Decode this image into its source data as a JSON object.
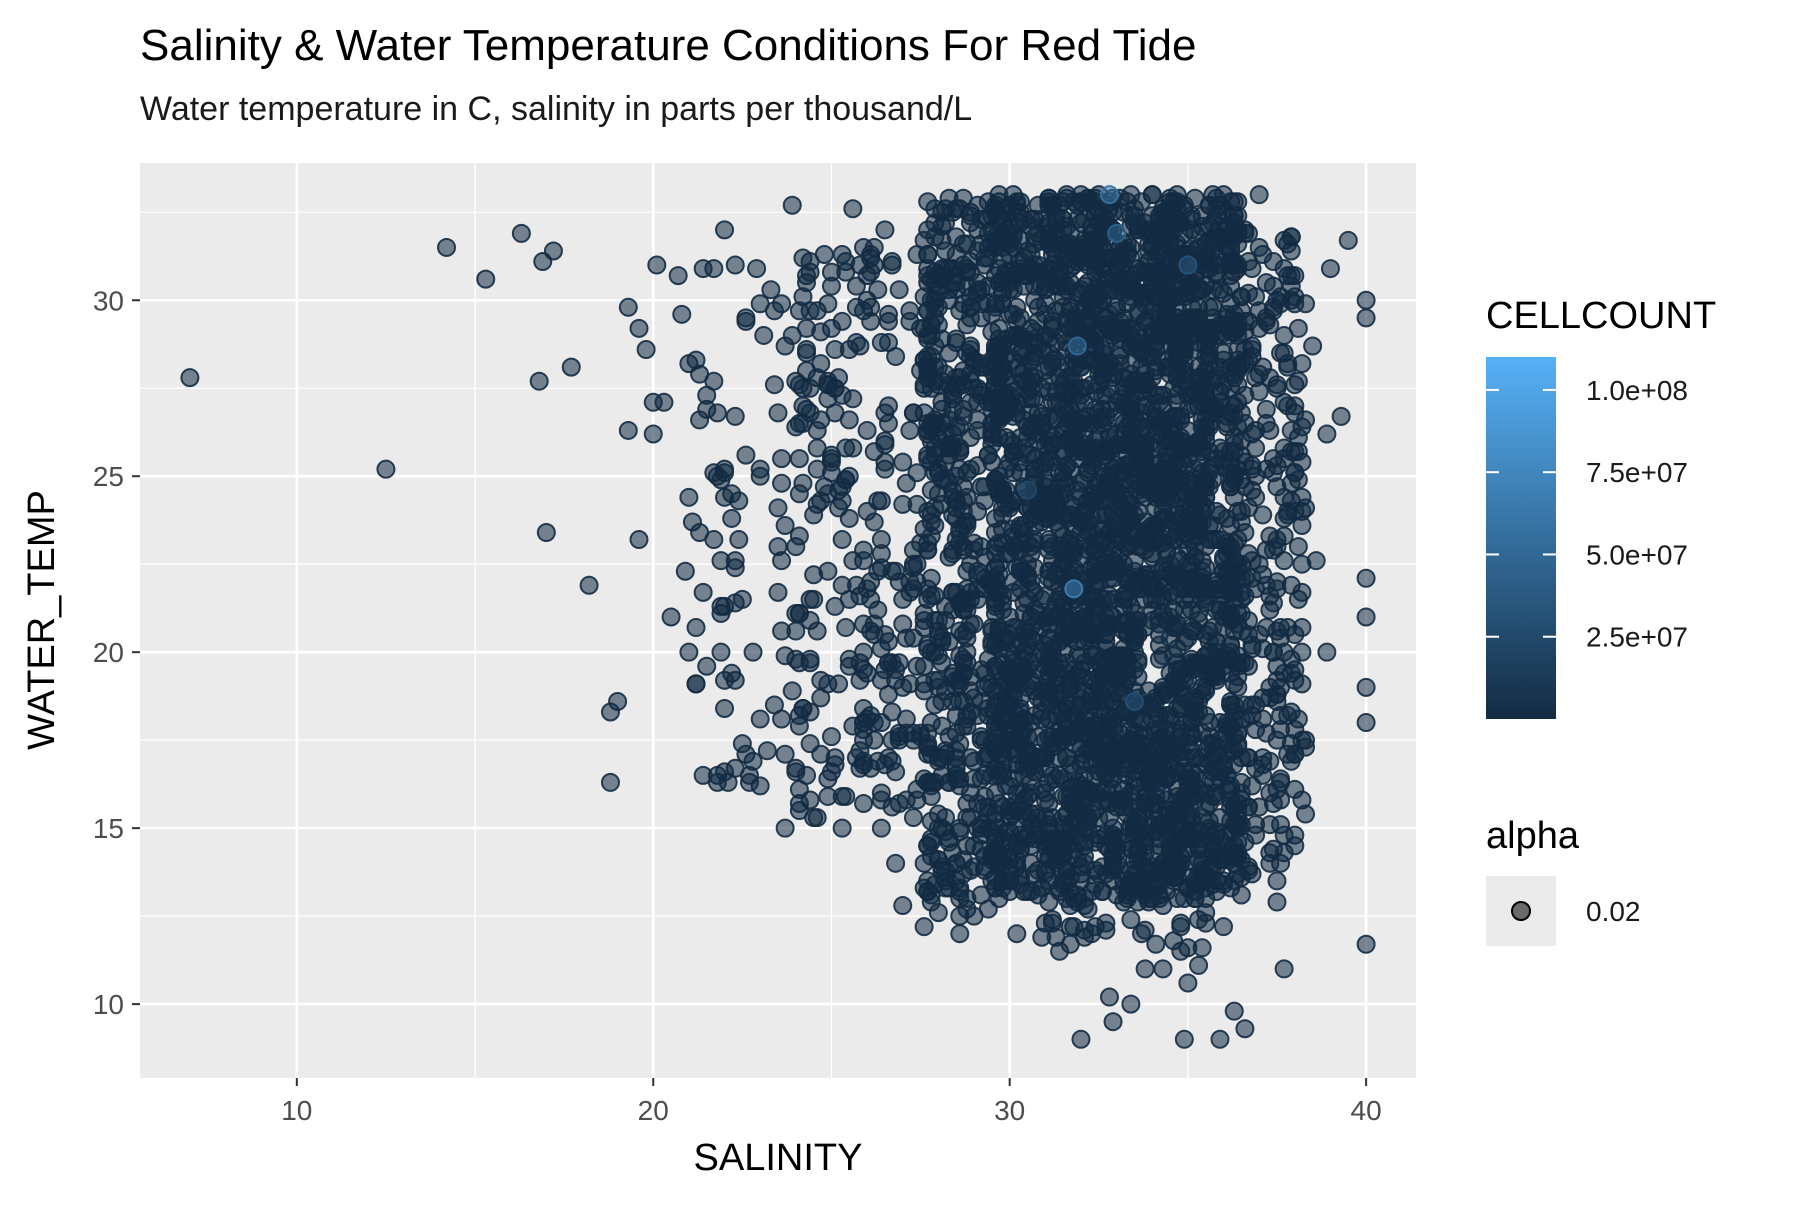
{
  "chart_data": {
    "type": "scatter",
    "title": "Salinity & Water Temperature Conditions For Red Tide",
    "subtitle": "Water temperature in C, salinity in parts per thousand/L",
    "xlabel": "SALINITY",
    "ylabel": "WATER_TEMP",
    "xlim": [
      5.6,
      41.4
    ],
    "ylim": [
      7.9,
      33.9
    ],
    "xticks": [
      "10",
      "20",
      "30",
      "40"
    ],
    "yticks": [
      "10",
      "15",
      "20",
      "25",
      "30"
    ],
    "grid": true,
    "panel_color": "#ebebeb",
    "point_color": "#132b43",
    "point_alpha": 0.55,
    "color_scale": {
      "name": "CELLCOUNT",
      "low_color": "#132b43",
      "high_color": "#56b1f7",
      "min": 0,
      "max": 110000000,
      "breaks": [
        {
          "value": 25000000,
          "label": "2.5e+07"
        },
        {
          "value": 50000000,
          "label": "5.0e+07"
        },
        {
          "value": 75000000,
          "label": "7.5e+07"
        },
        {
          "value": 100000000,
          "label": "1.0e+08"
        }
      ]
    },
    "alpha_legend": {
      "title": "alpha",
      "label": "0.02"
    },
    "legend_position": "right",
    "points": [
      [
        7.0,
        27.8
      ],
      [
        12.5,
        25.2
      ],
      [
        14.2,
        31.5
      ],
      [
        15.3,
        30.6
      ],
      [
        16.3,
        31.9
      ],
      [
        16.9,
        31.1
      ],
      [
        17.2,
        31.4
      ],
      [
        16.8,
        27.7
      ],
      [
        17.7,
        28.1
      ],
      [
        17.0,
        23.4
      ],
      [
        18.2,
        21.9
      ],
      [
        19.0,
        18.6
      ],
      [
        18.8,
        18.3
      ],
      [
        18.8,
        16.3
      ],
      [
        19.6,
        23.2
      ],
      [
        19.3,
        29.8
      ],
      [
        19.6,
        29.2
      ],
      [
        19.8,
        28.6
      ],
      [
        20.0,
        27.1
      ],
      [
        20.3,
        27.1
      ],
      [
        20.5,
        21.0
      ],
      [
        21.2,
        20.7
      ],
      [
        21.1,
        23.7
      ],
      [
        22.0,
        21.3
      ],
      [
        22.0,
        32.0
      ],
      [
        23.9,
        32.7
      ],
      [
        24.7,
        26.6
      ],
      [
        24.6,
        24.2
      ],
      [
        25.3,
        15.0
      ],
      [
        26.4,
        15.0
      ],
      [
        26.8,
        14.0
      ],
      [
        27.0,
        12.8
      ],
      [
        27.6,
        12.2
      ],
      [
        28.6,
        12.0
      ],
      [
        29.0,
        12.5
      ],
      [
        30.2,
        12.0
      ],
      [
        30.9,
        11.9
      ],
      [
        31.1,
        12.9
      ],
      [
        32.0,
        9.0
      ],
      [
        32.8,
        10.2
      ],
      [
        33.4,
        10.0
      ],
      [
        32.9,
        9.5
      ],
      [
        33.8,
        11.0
      ],
      [
        34.3,
        11.0
      ],
      [
        34.9,
        9.0
      ],
      [
        35.0,
        10.6
      ],
      [
        35.3,
        11.1
      ],
      [
        35.9,
        9.0
      ],
      [
        36.3,
        9.8
      ],
      [
        36.6,
        9.3
      ],
      [
        36.0,
        12.2
      ],
      [
        37.5,
        12.9
      ],
      [
        37.7,
        11.0
      ],
      [
        40.0,
        11.7
      ],
      [
        40.0,
        18.0
      ],
      [
        40.0,
        19.0
      ],
      [
        40.0,
        21.0
      ],
      [
        40.0,
        22.1
      ],
      [
        40.0,
        29.5
      ],
      [
        40.0,
        30.0
      ],
      [
        39.5,
        31.7
      ],
      [
        39.0,
        30.9
      ],
      [
        37.0,
        33.0
      ],
      [
        38.5,
        28.7
      ],
      [
        38.9,
        26.2
      ],
      [
        39.3,
        26.7
      ],
      [
        38.0,
        24.0
      ],
      [
        38.6,
        22.6
      ],
      [
        38.9,
        20.0
      ],
      [
        37.9,
        19.8
      ],
      [
        38.0,
        17.1
      ],
      [
        37.3,
        16.0
      ],
      [
        38.2,
        15.8
      ],
      [
        37.6,
        14.0
      ],
      [
        23.7,
        15.0
      ],
      [
        22.3,
        16.7
      ],
      [
        23.0,
        16.2
      ],
      [
        24.0,
        16.6
      ],
      [
        24.9,
        15.9
      ],
      [
        22.0,
        18.4
      ],
      [
        21.0,
        20.0
      ],
      [
        21.9,
        20.0
      ],
      [
        22.8,
        20.0
      ],
      [
        23.6,
        22.6
      ],
      [
        24.0,
        23.0
      ],
      [
        20.1,
        31.0
      ],
      [
        20.7,
        30.7
      ],
      [
        21.4,
        30.9
      ],
      [
        22.3,
        31.0
      ],
      [
        24.8,
        31.3
      ],
      [
        25.6,
        32.6
      ],
      [
        26.5,
        32.0
      ],
      [
        25.4,
        30.8
      ],
      [
        23.0,
        25.2
      ],
      [
        23.6,
        25.5
      ],
      [
        24.9,
        24.5
      ],
      [
        21.8,
        25.0
      ],
      [
        21.2,
        28.3
      ],
      [
        20.8,
        29.6
      ],
      [
        20.0,
        26.2
      ],
      [
        19.3,
        26.3
      ],
      [
        24.2,
        27.0
      ],
      [
        24.7,
        28.2
      ],
      [
        25.8,
        28.7
      ],
      [
        26.6,
        26.5
      ],
      [
        26.1,
        18.2
      ],
      [
        26.6,
        17.0
      ],
      [
        27.3,
        17.7
      ],
      [
        25.5,
        19.6
      ],
      [
        25.9,
        20.8
      ]
    ],
    "clusters": [
      {
        "x": [
          27.6,
          29.8
        ],
        "y": [
          12.5,
          33.0
        ],
        "n": 520
      },
      {
        "x": [
          29.5,
          36.5
        ],
        "y": [
          13.0,
          33.0
        ],
        "n": 2400
      },
      {
        "x": [
          31.0,
          35.5
        ],
        "y": [
          11.5,
          32.5
        ],
        "n": 500
      },
      {
        "x": [
          36.2,
          38.3
        ],
        "y": [
          13.5,
          32.0
        ],
        "n": 260
      },
      {
        "x": [
          24.0,
          27.8
        ],
        "y": [
          15.0,
          31.5
        ],
        "n": 260
      },
      {
        "x": [
          20.8,
          24.5
        ],
        "y": [
          16.0,
          31.2
        ],
        "n": 85
      }
    ],
    "highlight_points": [
      {
        "x": 32.8,
        "y": 33.0,
        "cellcount": 60000000
      },
      {
        "x": 33.0,
        "y": 31.9,
        "cellcount": 45000000
      },
      {
        "x": 31.9,
        "y": 28.7,
        "cellcount": 50000000
      },
      {
        "x": 31.8,
        "y": 21.8,
        "cellcount": 70000000
      },
      {
        "x": 33.5,
        "y": 18.6,
        "cellcount": 30000000
      },
      {
        "x": 35.0,
        "y": 31.0,
        "cellcount": 35000000
      },
      {
        "x": 30.5,
        "y": 24.6,
        "cellcount": 25000000
      }
    ]
  }
}
